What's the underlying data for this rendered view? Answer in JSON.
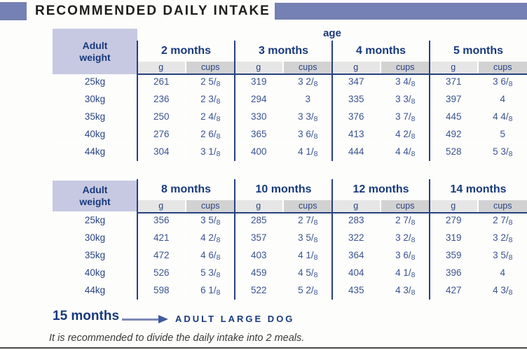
{
  "title": "RECOMMENDED DAILY INTAKE",
  "age_label": "age",
  "weight_header": "Adult weight",
  "unit_g": "g",
  "unit_cups": "cups",
  "tables": [
    {
      "months": [
        "2 months",
        "3 months",
        "4 months",
        "5 months"
      ],
      "rows": [
        {
          "weight": "25kg",
          "cells": [
            [
              "261",
              "2 5/8"
            ],
            [
              "319",
              "3 2/8"
            ],
            [
              "347",
              "3 4/8"
            ],
            [
              "371",
              "3 6/8"
            ]
          ]
        },
        {
          "weight": "30kg",
          "cells": [
            [
              "236",
              "2 3/8"
            ],
            [
              "294",
              "3"
            ],
            [
              "335",
              "3 3/8"
            ],
            [
              "397",
              "4"
            ]
          ]
        },
        {
          "weight": "35kg",
          "cells": [
            [
              "250",
              "2 4/8"
            ],
            [
              "330",
              "3 3/8"
            ],
            [
              "376",
              "3 7/8"
            ],
            [
              "445",
              "4 4/8"
            ]
          ]
        },
        {
          "weight": "40kg",
          "cells": [
            [
              "276",
              "2 6/8"
            ],
            [
              "365",
              "3 6/8"
            ],
            [
              "413",
              "4 2/8"
            ],
            [
              "492",
              "5"
            ]
          ]
        },
        {
          "weight": "44kg",
          "cells": [
            [
              "304",
              "3 1/8"
            ],
            [
              "400",
              "4 1/8"
            ],
            [
              "444",
              "4 4/8"
            ],
            [
              "528",
              "5 3/8"
            ]
          ]
        }
      ]
    },
    {
      "months": [
        "8 months",
        "10 months",
        "12 months",
        "14 months"
      ],
      "rows": [
        {
          "weight": "25kg",
          "cells": [
            [
              "356",
              "3 5/8"
            ],
            [
              "285",
              "2 7/8"
            ],
            [
              "283",
              "2 7/8"
            ],
            [
              "279",
              "2 7/8"
            ]
          ]
        },
        {
          "weight": "30kg",
          "cells": [
            [
              "421",
              "4 2/8"
            ],
            [
              "357",
              "3 5/8"
            ],
            [
              "322",
              "3 2/8"
            ],
            [
              "319",
              "3 2/8"
            ]
          ]
        },
        {
          "weight": "35kg",
          "cells": [
            [
              "472",
              "4 6/8"
            ],
            [
              "403",
              "4 1/8"
            ],
            [
              "364",
              "3 6/8"
            ],
            [
              "359",
              "3 5/8"
            ]
          ]
        },
        {
          "weight": "40kg",
          "cells": [
            [
              "526",
              "5 3/8"
            ],
            [
              "459",
              "4 5/8"
            ],
            [
              "404",
              "4 1/8"
            ],
            [
              "396",
              "4"
            ]
          ]
        },
        {
          "weight": "44kg",
          "cells": [
            [
              "598",
              "6 1/8"
            ],
            [
              "522",
              "5 2/8"
            ],
            [
              "435",
              "4 3/8"
            ],
            [
              "427",
              "4 3/8"
            ]
          ]
        }
      ]
    }
  ],
  "footer": {
    "milestone": "15 months",
    "result": "ADULT LARGE DOG",
    "note": "It is recommended to divide the daily intake into 2 meals."
  },
  "colors": {
    "accent_purple": "#7580b4",
    "navy": "#18397c",
    "lavender": "#c6c9e1",
    "gray_light": "#e6e6e6",
    "gray_dark": "#d2d2d2"
  }
}
